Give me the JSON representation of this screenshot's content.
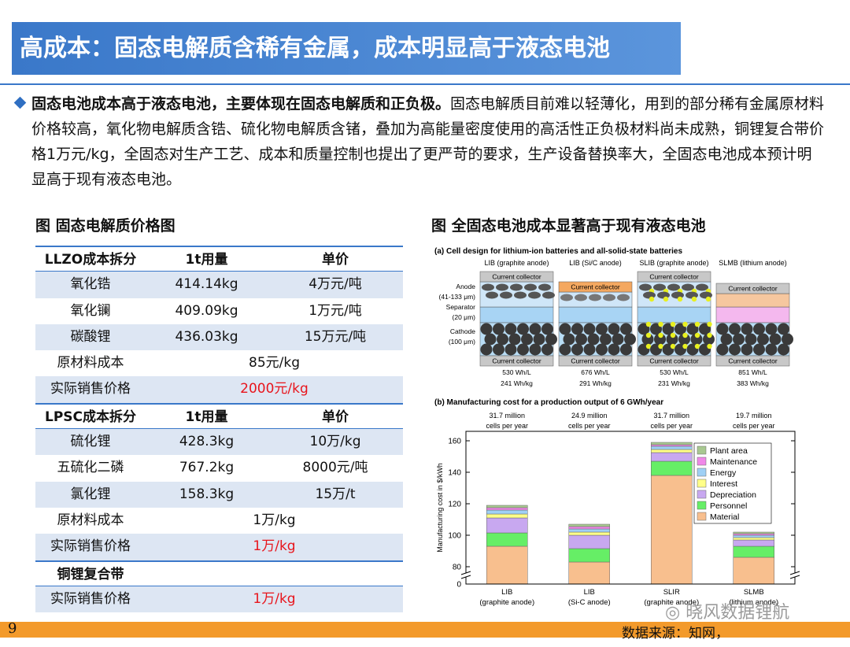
{
  "header": {
    "title": "高成本：固态电解质含稀有金属，成本明显高于液态电池"
  },
  "bullet": {
    "bold": "固态电池成本高于液态电池，主要体现在固态电解质和正负极。",
    "text": "固态电解质目前难以轻薄化，用到的部分稀有金属原材料价格较高，氧化物电解质含锆、硫化物电解质含锗，叠加为高能量密度使用的高活性正负极材料尚未成熟，铜锂复合带价格1万元/kg，全固态对生产工艺、成本和质量控制也提出了更严苛的要求，生产设备替换率大，全固态电池成本预计明显高于现有液态电池。"
  },
  "table": {
    "title": "图 固态电解质价格图",
    "highlight_color": "#e8141b",
    "highlight_rows": [
      5,
      11,
      13
    ],
    "header_rows": [
      0,
      6,
      12
    ],
    "rows": [
      [
        "LLZO成本拆分",
        "1t用量",
        "单价"
      ],
      [
        "氧化锆",
        "414.14kg",
        "4万元/吨"
      ],
      [
        "氧化镧",
        "409.09kg",
        "1万元/吨"
      ],
      [
        "碳酸锂",
        "436.03kg",
        "15万元/吨"
      ],
      [
        "原材料成本",
        "85元/kg"
      ],
      [
        "实际销售价格",
        "2000元/kg"
      ],
      [
        "LPSC成本拆分",
        "1t用量",
        "单价"
      ],
      [
        "硫化锂",
        "428.3kg",
        "10万/kg"
      ],
      [
        "五硫化二磷",
        "767.2kg",
        "8000元/吨"
      ],
      [
        "氯化锂",
        "158.3kg",
        "15万/t"
      ],
      [
        "原材料成本",
        "1万/kg"
      ],
      [
        "实际销售价格",
        "1万/kg"
      ],
      [
        "铜锂复合带"
      ],
      [
        "实际销售价格",
        "1万/kg"
      ]
    ]
  },
  "figure": {
    "title": "图 全固态电池成本显著高于现有液态电池"
  },
  "diagram": {
    "title": "(a) Cell design for lithium-ion batteries and all-solid-state batteries",
    "layer_labels": [
      "Anode",
      "(41-133 μm)",
      "Separator",
      "(20 μm)",
      "Cathode",
      "(100 μm)"
    ],
    "columns": [
      {
        "label": "LIB (graphite anode)",
        "top": "Current collector",
        "bottom": "Current collector",
        "vol": "530 Wh/L",
        "grav": "241 Wh/kg"
      },
      {
        "label": "LIB (Si/C anode)",
        "top": "Current collector",
        "bottom": "Current collector",
        "vol": "676 Wh/L",
        "grav": "291 Wh/kg"
      },
      {
        "label": "SLIB (graphite anode)",
        "top": "Current collector",
        "bottom": "Current collector",
        "vol": "530 Wh/L",
        "grav": "231 Wh/kg"
      },
      {
        "label": "SLMB (lithium anode)",
        "top": "Current collector",
        "bottom": "Current collector",
        "vol": "851 Wh/L",
        "grav": "383 Wh/kg"
      }
    ]
  },
  "chart_data": {
    "type": "bar",
    "stacked": true,
    "axis_break": true,
    "title": "(b) Manufacturing cost for a production output of 6 GWh/year",
    "y_label": "Manufacturing cost in $/kWh",
    "categories": [
      "LIB",
      "LIB",
      "SLIR",
      "SLMB"
    ],
    "category_notes": [
      "(graphite anode)",
      "(Si-C anode)",
      "(graphite anode)",
      "(lithium anode)"
    ],
    "annotations": [
      [
        "31.7 million",
        "cells per year"
      ],
      [
        "24.9 million",
        "cells per year"
      ],
      [
        "31.7 million",
        "cells per year"
      ],
      [
        "19.7 million",
        "cells per year"
      ]
    ],
    "ylim": [
      0,
      160
    ],
    "yticks": [
      0,
      80,
      100,
      120,
      140,
      160
    ],
    "legend": "top-right",
    "series": [
      {
        "name": "Material",
        "color": "#f8bf8e",
        "values": [
          93,
          83,
          138,
          86
        ]
      },
      {
        "name": "Personnel",
        "color": "#66ee66",
        "values": [
          8.5,
          8.5,
          9,
          7
        ]
      },
      {
        "name": "Depreciation",
        "color": "#c8a8f0",
        "values": [
          9.5,
          8.5,
          5.5,
          4
        ]
      },
      {
        "name": "Interest",
        "color": "#ffff88",
        "values": [
          2.5,
          2,
          2,
          1.5
        ]
      },
      {
        "name": "Energy",
        "color": "#9fd0f5",
        "values": [
          2.5,
          2,
          2,
          1.5
        ]
      },
      {
        "name": "Maintenance",
        "color": "#f088e8",
        "values": [
          1.5,
          1.5,
          1,
          1
        ]
      },
      {
        "name": "Plant area",
        "color": "#a8c890",
        "values": [
          1.5,
          1.5,
          1.5,
          1
        ]
      }
    ]
  },
  "footer": {
    "page": "9",
    "source": "数据来源：知网，",
    "watermark": "晓风数据锂航"
  }
}
